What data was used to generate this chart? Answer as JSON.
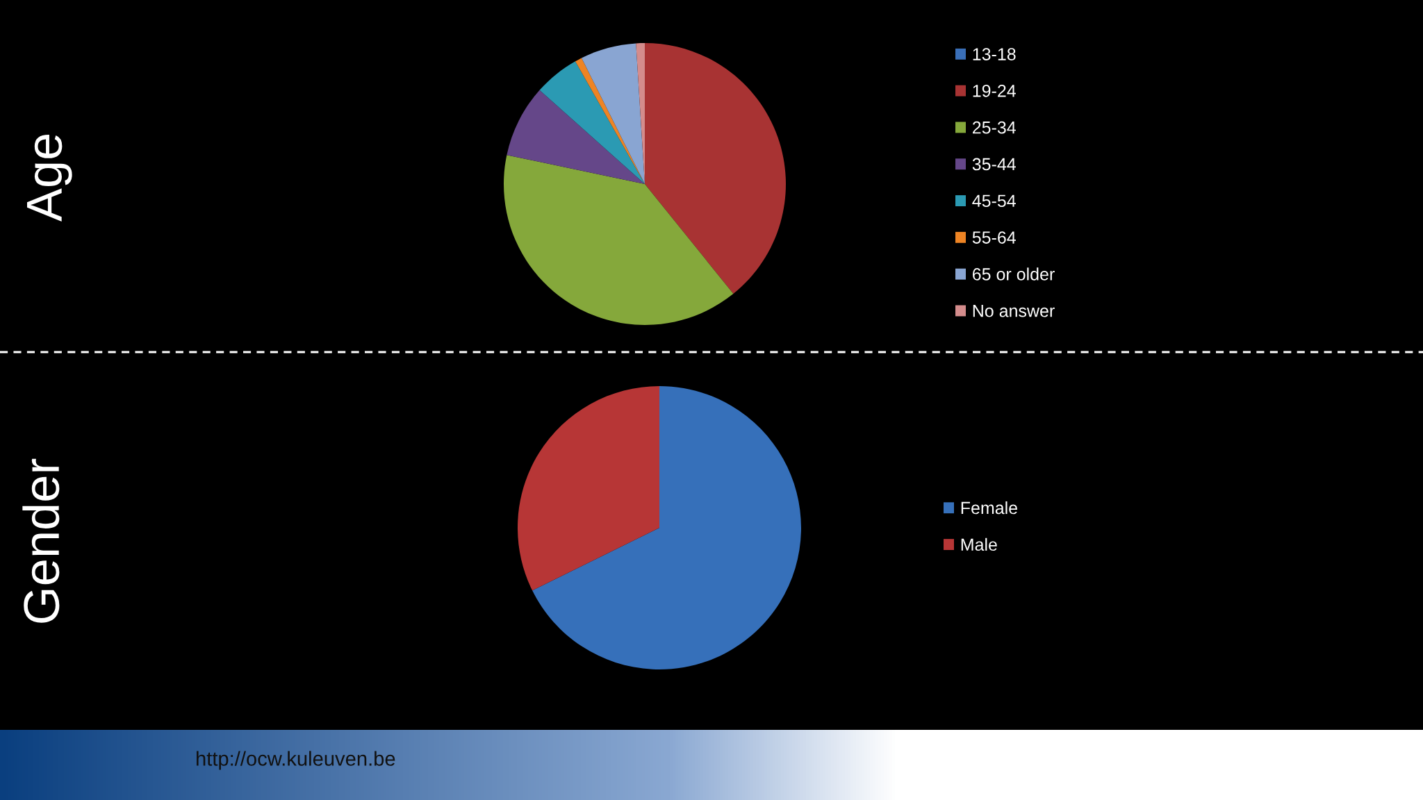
{
  "chart_data": [
    {
      "type": "pie",
      "title": "Age",
      "categories": [
        "13-18",
        "19-24",
        "25-34",
        "35-44",
        "45-54",
        "55-64",
        "65 or older",
        "No answer"
      ],
      "values": [
        0,
        39.2,
        39.1,
        8.3,
        5.2,
        0.8,
        6.4,
        1.0
      ],
      "colors": [
        "#3a6fb8",
        "#a83333",
        "#85a83b",
        "#654789",
        "#2b9ab3",
        "#ee8424",
        "#89a5d2",
        "#d48c8c"
      ],
      "legend": "right"
    },
    {
      "type": "pie",
      "title": "Gender",
      "categories": [
        "Female",
        "Male"
      ],
      "values": [
        67.7,
        32.3
      ],
      "colors": [
        "#3670ba",
        "#b73636"
      ],
      "legend": "right",
      "annotations": [
        "http://ocw.kuleuven.be"
      ]
    }
  ]
}
